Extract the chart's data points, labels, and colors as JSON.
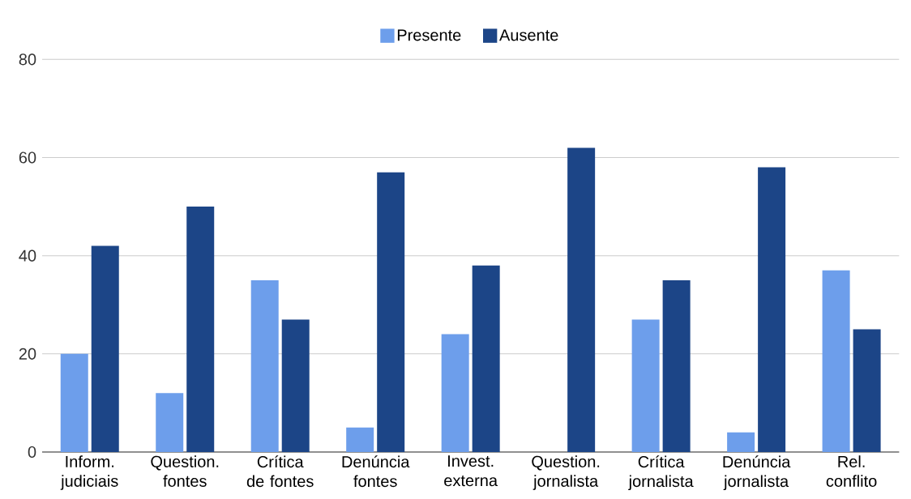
{
  "chart_data": {
    "type": "bar",
    "categories": [
      "Inform. judiciais",
      "Question. fontes",
      "Crítica de fontes",
      "Denúncia fontes",
      "Invest. externa",
      "Question. jornalista",
      "Crítica jornalista",
      "Denúncia jornalista",
      "Rel. conflito"
    ],
    "series": [
      {
        "name": "Presente",
        "color": "#6d9eeb",
        "values": [
          20,
          12,
          35,
          5,
          24,
          0,
          27,
          4,
          37
        ]
      },
      {
        "name": "Ausente",
        "color": "#1c4587",
        "values": [
          42,
          50,
          27,
          57,
          38,
          62,
          35,
          58,
          25
        ]
      }
    ],
    "ylim": [
      0,
      80
    ],
    "yticks": [
      0,
      20,
      40,
      60,
      80
    ],
    "grid": "y",
    "legend": "top"
  }
}
